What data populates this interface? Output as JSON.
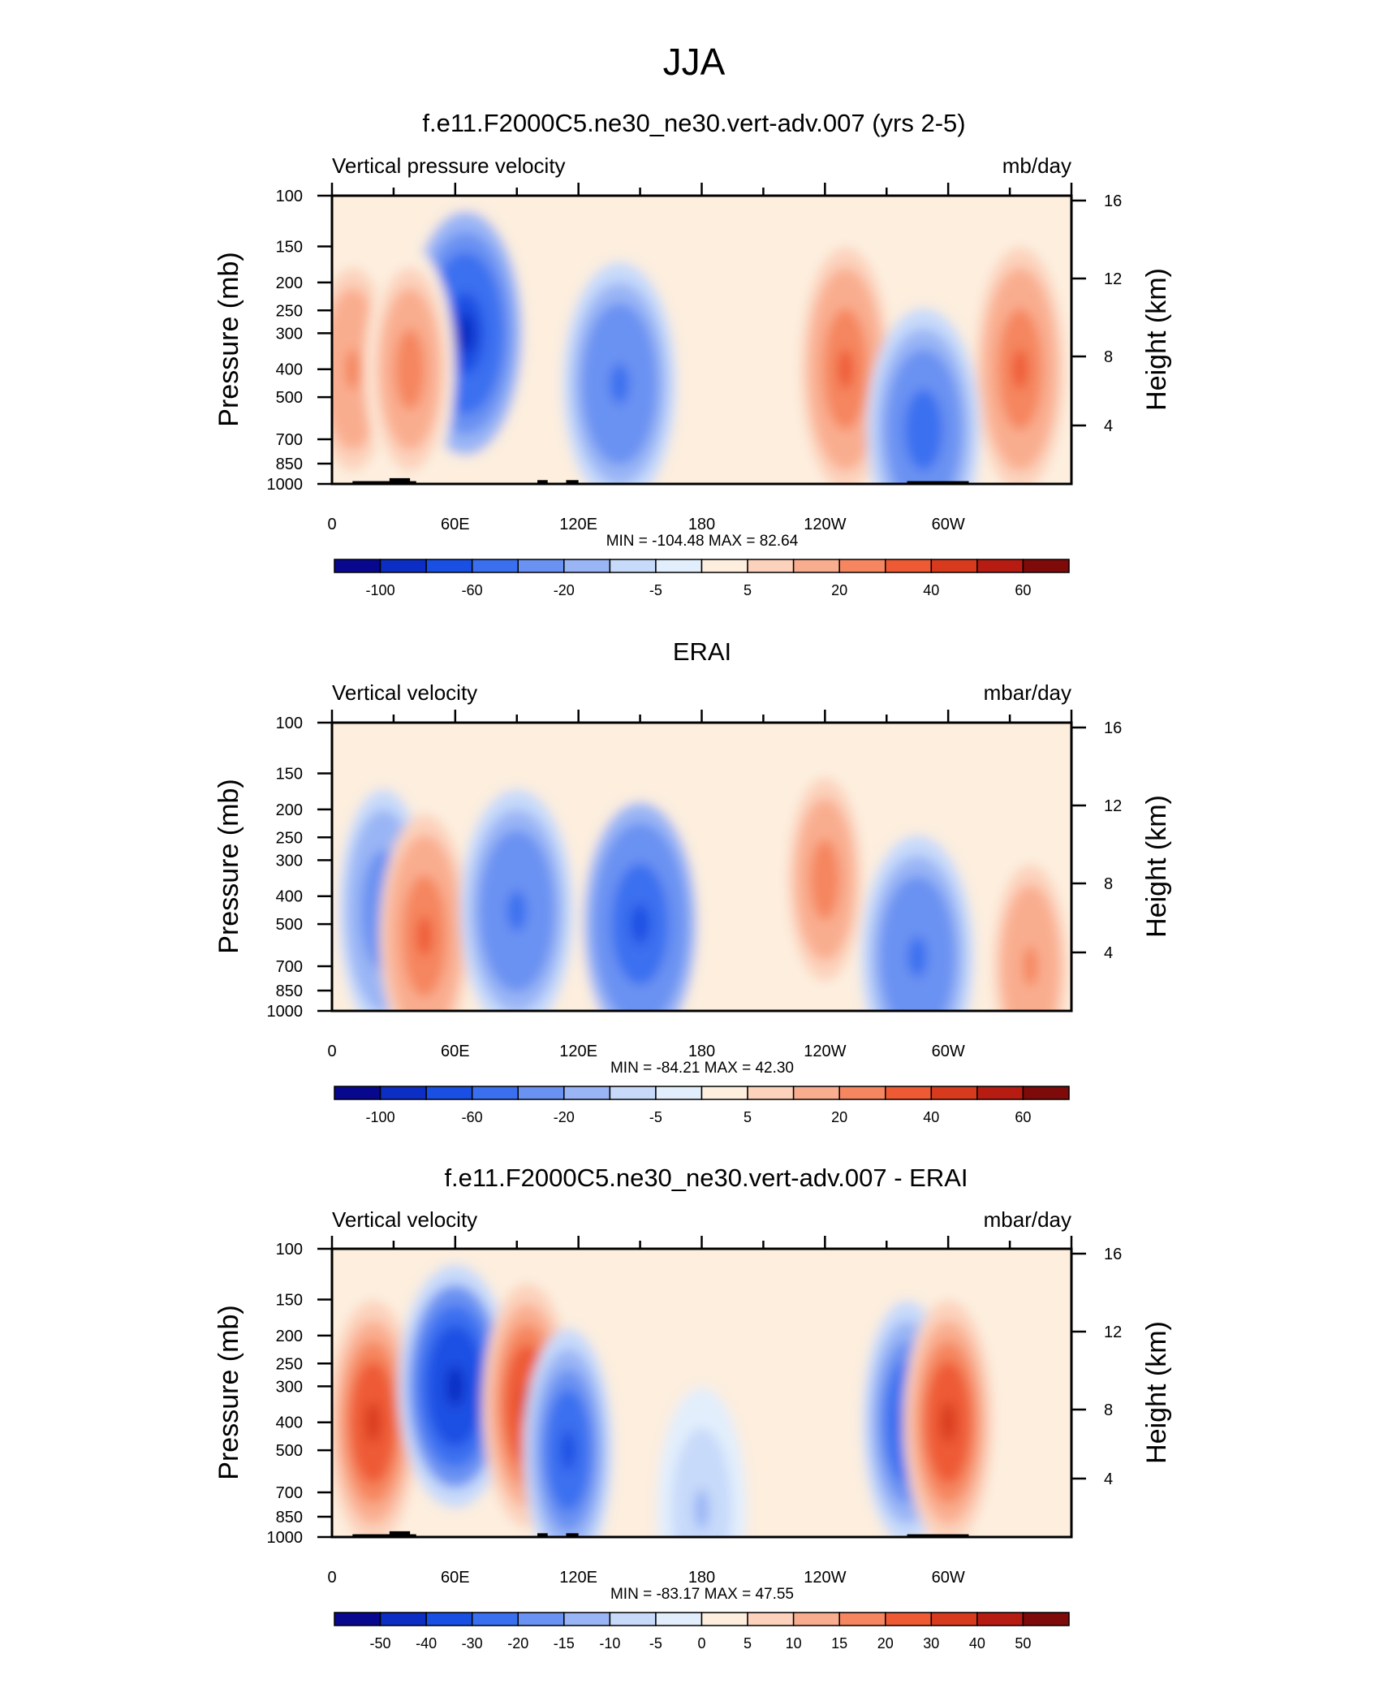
{
  "figure_title": "JJA",
  "panels": [
    {
      "title": "f.e11.F2000C5.ne30_ne30.vert-adv.007 (yrs 2-5)",
      "left_label": "Vertical pressure velocity",
      "right_label": "mb/day",
      "stats": "MIN = -104.48  MAX =  82.64",
      "colorbar_labels": [
        "-100",
        "-60",
        "-20",
        "-5",
        "5",
        "20",
        "40",
        "60"
      ],
      "show_topography": true
    },
    {
      "title": "ERAI",
      "left_label": "Vertical velocity",
      "right_label": "mbar/day",
      "stats": "MIN = -84.21  MAX =  42.30",
      "colorbar_labels": [
        "-100",
        "-60",
        "-20",
        "-5",
        "5",
        "20",
        "40",
        "60"
      ],
      "show_topography": false
    },
    {
      "title": "f.e11.F2000C5.ne30_ne30.vert-adv.007 - ERAI",
      "left_label": "Vertical velocity",
      "right_label": "mbar/day",
      "stats": "MIN = -83.17  MAX =  47.55",
      "colorbar_labels": [
        "-50",
        "-40",
        "-30",
        "-20",
        "-15",
        "-10",
        "-5",
        "0",
        "5",
        "10",
        "15",
        "20",
        "30",
        "40",
        "50"
      ],
      "show_topography": true
    }
  ],
  "axes": {
    "ylabel_left": "Pressure (mb)",
    "ylabel_right": "Height (km)",
    "pressure_ticks": [
      "100",
      "150",
      "200",
      "250",
      "300",
      "400",
      "500",
      "700",
      "850",
      "1000"
    ],
    "height_ticks": [
      "16",
      "12",
      "8",
      "4"
    ],
    "lon_ticks": [
      "0",
      "60E",
      "120E",
      "180",
      "120W",
      "60W"
    ]
  },
  "colors": {
    "palette": [
      "#08088f",
      "#0d2ec4",
      "#1a4fe3",
      "#3a6ff0",
      "#6a92f2",
      "#9ab5f5",
      "#c7dafa",
      "#e2eefc",
      "#fdeede",
      "#fcd2bc",
      "#f9ad8f",
      "#f5865f",
      "#ee5a34",
      "#d83a1e",
      "#b71c12",
      "#7f0a0a"
    ]
  },
  "chart_data": [
    {
      "type": "contour",
      "title": "f.e11.F2000C5.ne30_ne30.vert-adv.007 (yrs 2-5)",
      "variable": "Vertical pressure velocity",
      "units": "mb/day",
      "x": [
        "0",
        "60E",
        "120E",
        "180",
        "120W",
        "60W"
      ],
      "y": [
        100,
        150,
        200,
        250,
        300,
        400,
        500,
        700,
        850,
        1000
      ],
      "levels": [
        -120,
        -100,
        -80,
        -60,
        -40,
        -20,
        -10,
        -5,
        0,
        5,
        10,
        20,
        30,
        40,
        50,
        60,
        80
      ],
      "min": -104.48,
      "max": 82.64,
      "features": [
        {
          "lon": 65,
          "p": 300,
          "value": -95
        },
        {
          "lon": 140,
          "p": 450,
          "value": -50
        },
        {
          "lon": 250,
          "p": 400,
          "value": 40
        },
        {
          "lon": 335,
          "p": 400,
          "value": 40
        },
        {
          "lon": 288,
          "p": 650,
          "value": -60
        },
        {
          "lon": 10,
          "p": 400,
          "value": 25
        },
        {
          "lon": 38,
          "p": 400,
          "value": 30
        }
      ]
    },
    {
      "type": "contour",
      "title": "ERAI",
      "variable": "Vertical velocity",
      "units": "mbar/day",
      "x": [
        "0",
        "60E",
        "120E",
        "180",
        "120W",
        "60W"
      ],
      "y": [
        100,
        150,
        200,
        250,
        300,
        400,
        500,
        700,
        850,
        1000
      ],
      "levels": [
        -120,
        -100,
        -80,
        -60,
        -40,
        -20,
        -10,
        -5,
        0,
        5,
        10,
        20,
        30,
        40,
        50,
        60,
        80
      ],
      "min": -84.21,
      "max": 42.3,
      "features": [
        {
          "lon": 25,
          "p": 450,
          "value": -40
        },
        {
          "lon": 45,
          "p": 550,
          "value": 35
        },
        {
          "lon": 90,
          "p": 450,
          "value": -50
        },
        {
          "lon": 150,
          "p": 500,
          "value": -70
        },
        {
          "lon": 240,
          "p": 350,
          "value": 32
        },
        {
          "lon": 285,
          "p": 650,
          "value": -55
        },
        {
          "lon": 340,
          "p": 700,
          "value": 25
        }
      ]
    },
    {
      "type": "contour",
      "title": "f.e11.F2000C5.ne30_ne30.vert-adv.007 - ERAI",
      "variable": "Vertical velocity",
      "units": "mbar/day",
      "x": [
        "0",
        "60E",
        "120E",
        "180",
        "120W",
        "60W"
      ],
      "y": [
        100,
        150,
        200,
        250,
        300,
        400,
        500,
        700,
        850,
        1000
      ],
      "levels": [
        -60,
        -50,
        -40,
        -30,
        -20,
        -15,
        -10,
        -5,
        0,
        5,
        10,
        15,
        20,
        30,
        40,
        50,
        60
      ],
      "min": -83.17,
      "max": 47.55,
      "features": [
        {
          "lon": 20,
          "p": 400,
          "value": 40
        },
        {
          "lon": 60,
          "p": 300,
          "value": -55
        },
        {
          "lon": 95,
          "p": 350,
          "value": 40
        },
        {
          "lon": 115,
          "p": 500,
          "value": -35
        },
        {
          "lon": 180,
          "p": 800,
          "value": -12
        },
        {
          "lon": 280,
          "p": 400,
          "value": -40
        },
        {
          "lon": 300,
          "p": 400,
          "value": 38
        }
      ]
    }
  ]
}
